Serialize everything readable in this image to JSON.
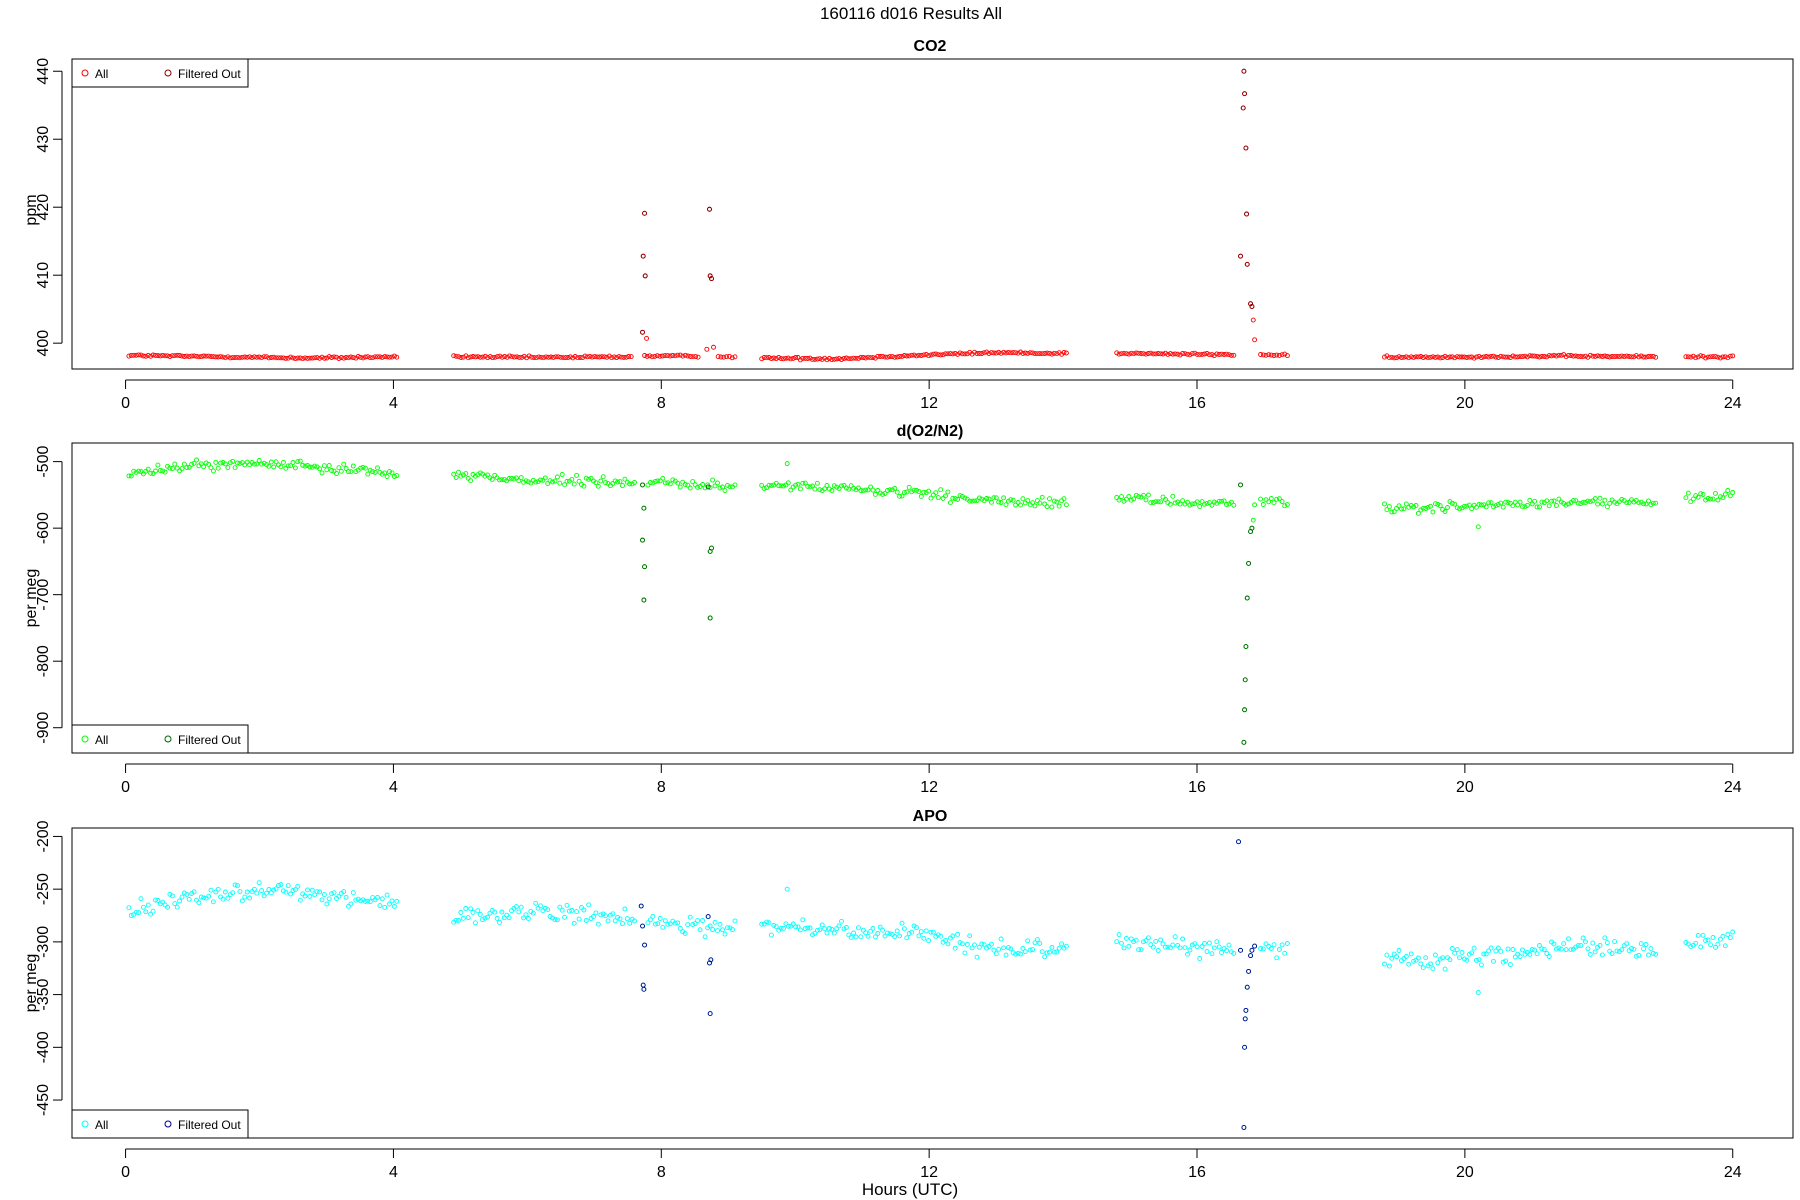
{
  "figure": {
    "title": "160116   d016   Results All"
  },
  "colors": {
    "co2_all": "#ff0000",
    "co2_filtered": "#8b0000",
    "o2n2_all": "#00ff00",
    "o2n2_filtered": "#006400",
    "apo_all": "#00ffff",
    "apo_filtered": "#00008b",
    "axis": "#000000",
    "background": "#ffffff"
  },
  "chart_data": [
    {
      "type": "scatter",
      "title": "CO2",
      "xlabel": "",
      "ylabel": "ppm",
      "xlim": [
        -0.8,
        24.9
      ],
      "ylim": [
        396.2,
        441.8
      ],
      "xticks": [
        0,
        4,
        8,
        12,
        16,
        20,
        24
      ],
      "yticks": [
        400,
        410,
        420,
        430,
        440
      ],
      "legend": {
        "position": "top-left",
        "entries": [
          "All",
          "Filtered Out"
        ]
      },
      "segments": [
        {
          "x0": 0.05,
          "x1": 4.05,
          "level": [
            398.2,
            398.0,
            397.8,
            398.0
          ],
          "noise": 0.15
        },
        {
          "x0": 4.9,
          "x1": 7.55,
          "level": [
            398.0,
            397.9,
            398.0
          ],
          "noise": 0.15
        },
        {
          "x0": 7.75,
          "x1": 8.55,
          "level": [
            398.1,
            398.1
          ],
          "noise": 0.15
        },
        {
          "x0": 8.85,
          "x1": 9.1,
          "level": [
            398.0,
            398.0
          ],
          "noise": 0.15
        },
        {
          "x0": 9.5,
          "x1": 14.05,
          "level": [
            397.8,
            397.7,
            398.2,
            398.6,
            398.5
          ],
          "noise": 0.15
        },
        {
          "x0": 14.8,
          "x1": 16.55,
          "level": [
            398.5,
            398.3
          ],
          "noise": 0.15
        },
        {
          "x0": 16.95,
          "x1": 17.35,
          "level": [
            398.3,
            398.2
          ],
          "noise": 0.15
        },
        {
          "x0": 18.8,
          "x1": 22.85,
          "level": [
            397.9,
            398.0,
            398.1,
            398.0
          ],
          "noise": 0.15
        },
        {
          "x0": 23.3,
          "x1": 24.0,
          "level": [
            398.0,
            398.0
          ],
          "noise": 0.15
        }
      ],
      "outliers_all": [
        {
          "x": 7.72,
          "y": 401.6
        },
        {
          "x": 7.75,
          "y": 419.1
        },
        {
          "x": 7.73,
          "y": 412.8
        },
        {
          "x": 7.76,
          "y": 409.9
        },
        {
          "x": 7.78,
          "y": 400.7
        },
        {
          "x": 8.72,
          "y": 419.7
        },
        {
          "x": 8.73,
          "y": 409.9
        },
        {
          "x": 8.75,
          "y": 409.5
        },
        {
          "x": 8.68,
          "y": 399.1
        },
        {
          "x": 8.78,
          "y": 399.4
        },
        {
          "x": 16.65,
          "y": 412.8
        },
        {
          "x": 16.7,
          "y": 440.0
        },
        {
          "x": 16.71,
          "y": 436.7
        },
        {
          "x": 16.69,
          "y": 434.6
        },
        {
          "x": 16.73,
          "y": 428.7
        },
        {
          "x": 16.74,
          "y": 419.0
        },
        {
          "x": 16.75,
          "y": 411.6
        },
        {
          "x": 16.8,
          "y": 405.8
        },
        {
          "x": 16.82,
          "y": 405.4
        },
        {
          "x": 16.84,
          "y": 403.4
        },
        {
          "x": 16.86,
          "y": 400.5
        }
      ],
      "outliers_filtered": [
        {
          "x": 7.72,
          "y": 401.6
        },
        {
          "x": 7.75,
          "y": 419.1
        },
        {
          "x": 7.73,
          "y": 412.8
        },
        {
          "x": 7.76,
          "y": 409.9
        },
        {
          "x": 8.72,
          "y": 419.7
        },
        {
          "x": 8.73,
          "y": 409.9
        },
        {
          "x": 8.75,
          "y": 409.5
        },
        {
          "x": 16.65,
          "y": 412.8
        },
        {
          "x": 16.7,
          "y": 440.0
        },
        {
          "x": 16.71,
          "y": 436.7
        },
        {
          "x": 16.69,
          "y": 434.6
        },
        {
          "x": 16.73,
          "y": 428.7
        },
        {
          "x": 16.74,
          "y": 419.0
        },
        {
          "x": 16.75,
          "y": 411.6
        },
        {
          "x": 16.8,
          "y": 405.8
        },
        {
          "x": 16.82,
          "y": 405.4
        }
      ]
    },
    {
      "type": "scatter",
      "title": "d(O2/N2)",
      "xlabel": "",
      "ylabel": "per meg",
      "xlim": [
        -0.8,
        24.9
      ],
      "ylim": [
        -938,
        -472
      ],
      "xticks": [
        0,
        4,
        8,
        12,
        16,
        20,
        24
      ],
      "yticks": [
        -500,
        -600,
        -700,
        -800,
        -900
      ],
      "legend": {
        "position": "bottom-left",
        "entries": [
          "All",
          "Filtered Out"
        ]
      },
      "segments": [
        {
          "x0": 0.05,
          "x1": 4.05,
          "level": [
            -520,
            -505,
            -503,
            -508,
            -518
          ],
          "noise": 7
        },
        {
          "x0": 4.9,
          "x1": 7.6,
          "level": [
            -520,
            -528,
            -533
          ],
          "noise": 7
        },
        {
          "x0": 7.8,
          "x1": 9.1,
          "level": [
            -530,
            -535,
            -537
          ],
          "noise": 7
        },
        {
          "x0": 9.5,
          "x1": 14.05,
          "level": [
            -535,
            -540,
            -548,
            -560,
            -562
          ],
          "noise": 7
        },
        {
          "x0": 14.8,
          "x1": 16.55,
          "level": [
            -555,
            -560,
            -563
          ],
          "noise": 7
        },
        {
          "x0": 16.95,
          "x1": 17.35,
          "level": [
            -560,
            -560
          ],
          "noise": 7
        },
        {
          "x0": 18.8,
          "x1": 22.85,
          "level": [
            -570,
            -568,
            -565,
            -560,
            -563
          ],
          "noise": 7
        },
        {
          "x0": 23.3,
          "x1": 24.0,
          "level": [
            -555,
            -552
          ],
          "noise": 7
        }
      ],
      "outliers_all": [
        {
          "x": 7.72,
          "y": -535
        },
        {
          "x": 7.74,
          "y": -570
        },
        {
          "x": 7.72,
          "y": -618
        },
        {
          "x": 7.75,
          "y": -658
        },
        {
          "x": 7.74,
          "y": -708
        },
        {
          "x": 8.73,
          "y": -635
        },
        {
          "x": 8.75,
          "y": -630
        },
        {
          "x": 8.73,
          "y": -735
        },
        {
          "x": 8.7,
          "y": -538
        },
        {
          "x": 9.88,
          "y": -503
        },
        {
          "x": 16.65,
          "y": -535
        },
        {
          "x": 16.7,
          "y": -922
        },
        {
          "x": 16.71,
          "y": -873
        },
        {
          "x": 16.72,
          "y": -828
        },
        {
          "x": 16.73,
          "y": -778
        },
        {
          "x": 16.75,
          "y": -705
        },
        {
          "x": 16.77,
          "y": -653
        },
        {
          "x": 16.8,
          "y": -605
        },
        {
          "x": 16.82,
          "y": -600
        },
        {
          "x": 16.84,
          "y": -588
        },
        {
          "x": 16.86,
          "y": -565
        },
        {
          "x": 20.2,
          "y": -598
        }
      ],
      "outliers_filtered": [
        {
          "x": 7.72,
          "y": -535
        },
        {
          "x": 7.74,
          "y": -570
        },
        {
          "x": 7.72,
          "y": -618
        },
        {
          "x": 7.75,
          "y": -658
        },
        {
          "x": 7.74,
          "y": -708
        },
        {
          "x": 8.73,
          "y": -635
        },
        {
          "x": 8.75,
          "y": -630
        },
        {
          "x": 8.73,
          "y": -735
        },
        {
          "x": 8.7,
          "y": -538
        },
        {
          "x": 16.65,
          "y": -535
        },
        {
          "x": 16.7,
          "y": -922
        },
        {
          "x": 16.71,
          "y": -873
        },
        {
          "x": 16.72,
          "y": -828
        },
        {
          "x": 16.73,
          "y": -778
        },
        {
          "x": 16.75,
          "y": -705
        },
        {
          "x": 16.77,
          "y": -653
        },
        {
          "x": 16.8,
          "y": -605
        },
        {
          "x": 16.82,
          "y": -600
        }
      ]
    },
    {
      "type": "scatter",
      "title": "APO",
      "xlabel": "Hours (UTC)",
      "ylabel": "per meg",
      "xlim": [
        -0.8,
        24.9
      ],
      "ylim": [
        -486,
        -192
      ],
      "xticks": [
        0,
        4,
        8,
        12,
        16,
        20,
        24
      ],
      "yticks": [
        -200,
        -250,
        -300,
        -350,
        -400,
        -450
      ],
      "legend": {
        "position": "bottom-left",
        "entries": [
          "All",
          "Filtered Out"
        ]
      },
      "segments": [
        {
          "x0": 0.05,
          "x1": 4.05,
          "level": [
            -270,
            -255,
            -252,
            -255,
            -265
          ],
          "noise": 8
        },
        {
          "x0": 4.9,
          "x1": 7.6,
          "level": [
            -275,
            -272,
            -280
          ],
          "noise": 8
        },
        {
          "x0": 7.8,
          "x1": 9.1,
          "level": [
            -282,
            -285,
            -287
          ],
          "noise": 8
        },
        {
          "x0": 9.5,
          "x1": 14.05,
          "level": [
            -285,
            -288,
            -292,
            -305,
            -307
          ],
          "noise": 8
        },
        {
          "x0": 14.8,
          "x1": 16.55,
          "level": [
            -300,
            -305,
            -308
          ],
          "noise": 8
        },
        {
          "x0": 16.95,
          "x1": 17.35,
          "level": [
            -305,
            -305
          ],
          "noise": 8
        },
        {
          "x0": 18.8,
          "x1": 22.85,
          "level": [
            -318,
            -315,
            -310,
            -305,
            -308
          ],
          "noise": 8
        },
        {
          "x0": 23.3,
          "x1": 24.0,
          "level": [
            -298,
            -296
          ],
          "noise": 8
        }
      ],
      "outliers_all": [
        {
          "x": 7.72,
          "y": -285
        },
        {
          "x": 7.75,
          "y": -303
        },
        {
          "x": 7.73,
          "y": -341
        },
        {
          "x": 7.74,
          "y": -345
        },
        {
          "x": 7.7,
          "y": -266
        },
        {
          "x": 8.72,
          "y": -320
        },
        {
          "x": 8.74,
          "y": -317
        },
        {
          "x": 8.73,
          "y": -368
        },
        {
          "x": 8.7,
          "y": -276
        },
        {
          "x": 9.88,
          "y": -250
        },
        {
          "x": 16.62,
          "y": -205
        },
        {
          "x": 16.65,
          "y": -308
        },
        {
          "x": 16.7,
          "y": -476
        },
        {
          "x": 16.71,
          "y": -400
        },
        {
          "x": 16.72,
          "y": -373
        },
        {
          "x": 16.73,
          "y": -365
        },
        {
          "x": 16.75,
          "y": -343
        },
        {
          "x": 16.77,
          "y": -328
        },
        {
          "x": 16.8,
          "y": -313
        },
        {
          "x": 16.82,
          "y": -308
        },
        {
          "x": 16.86,
          "y": -304
        },
        {
          "x": 20.2,
          "y": -348
        }
      ],
      "outliers_filtered": [
        {
          "x": 7.72,
          "y": -285
        },
        {
          "x": 7.75,
          "y": -303
        },
        {
          "x": 7.73,
          "y": -341
        },
        {
          "x": 7.74,
          "y": -345
        },
        {
          "x": 7.7,
          "y": -266
        },
        {
          "x": 8.72,
          "y": -320
        },
        {
          "x": 8.74,
          "y": -317
        },
        {
          "x": 8.73,
          "y": -368
        },
        {
          "x": 8.7,
          "y": -276
        },
        {
          "x": 16.62,
          "y": -205
        },
        {
          "x": 16.65,
          "y": -308
        },
        {
          "x": 16.7,
          "y": -476
        },
        {
          "x": 16.71,
          "y": -400
        },
        {
          "x": 16.72,
          "y": -373
        },
        {
          "x": 16.73,
          "y": -365
        },
        {
          "x": 16.75,
          "y": -343
        },
        {
          "x": 16.77,
          "y": -328
        },
        {
          "x": 16.8,
          "y": -313
        },
        {
          "x": 16.82,
          "y": -308
        },
        {
          "x": 16.86,
          "y": -304
        }
      ]
    }
  ]
}
